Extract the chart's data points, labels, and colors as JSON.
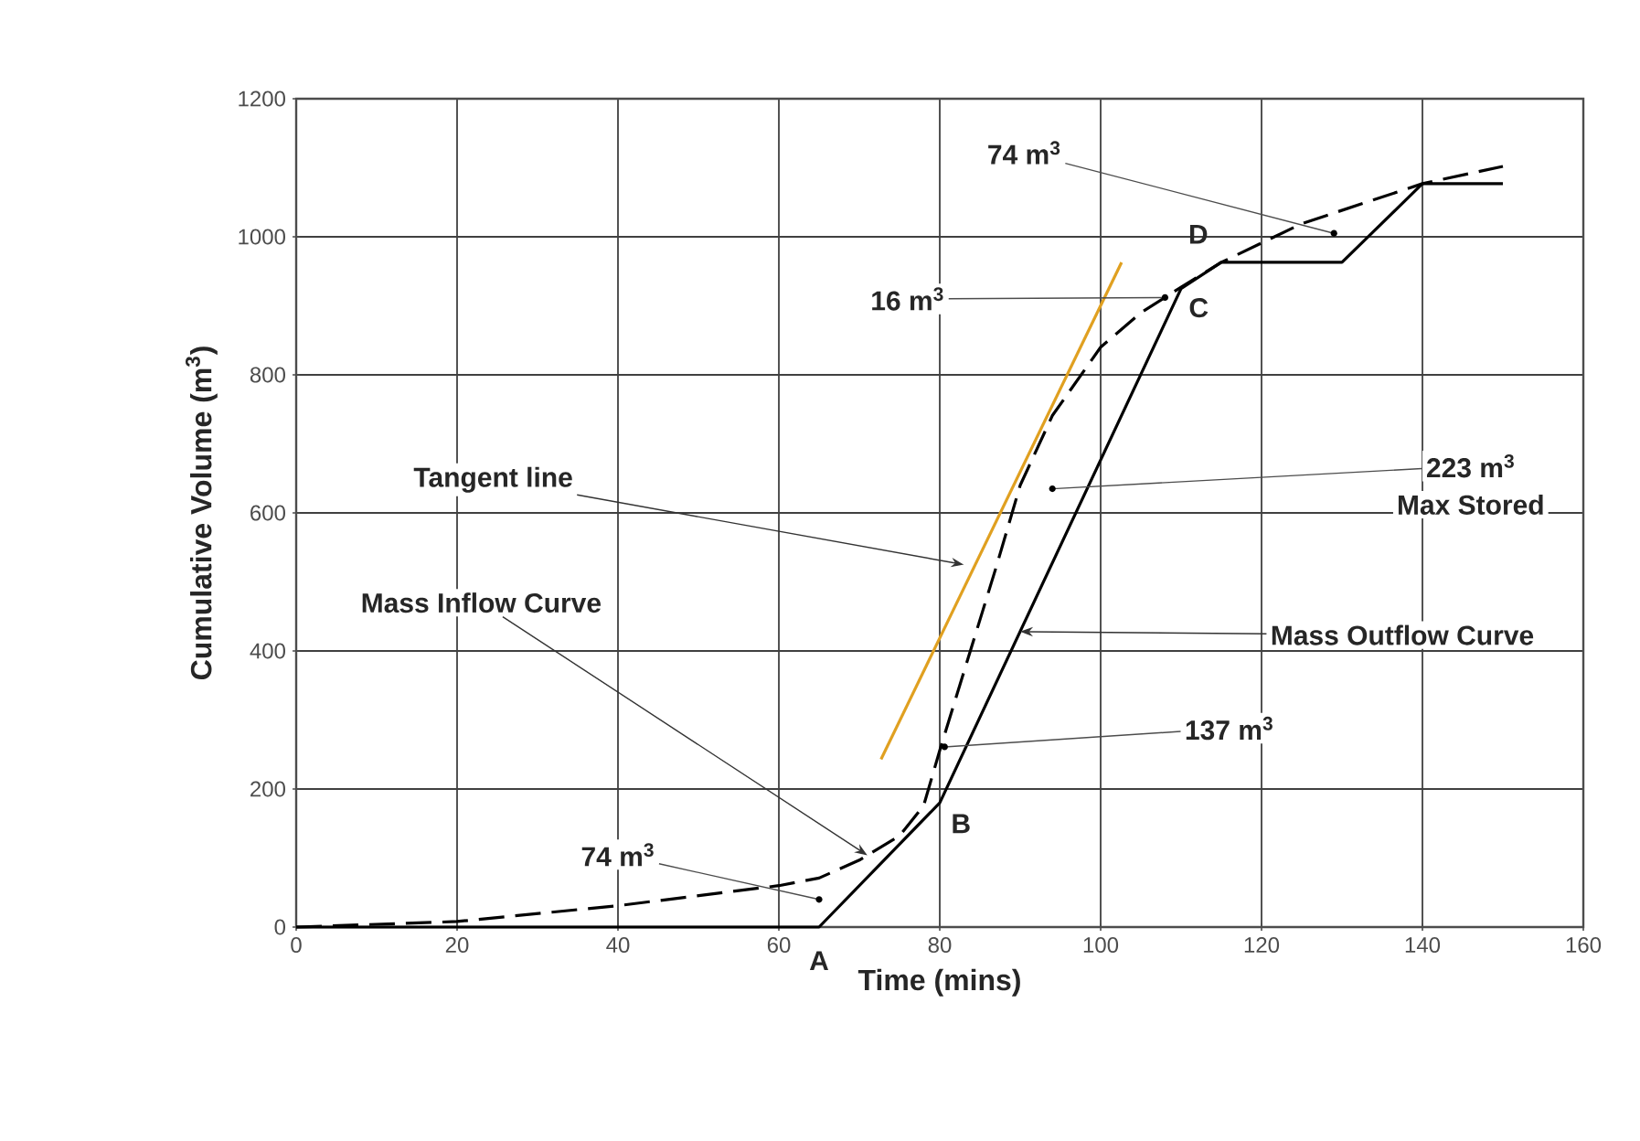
{
  "chart_data": {
    "type": "line",
    "xlabel": "Time (mins)",
    "ylabel": "Cumulative Volume (m$^{3}$)",
    "xlim": [
      0,
      160
    ],
    "xticks": [
      0,
      20,
      40,
      60,
      80,
      100,
      120,
      140,
      160
    ],
    "ylim": [
      0,
      1200
    ],
    "yticks": [
      0,
      200,
      400,
      600,
      800,
      1000,
      1200
    ],
    "grid": true,
    "marker": "none",
    "series": [
      {
        "color": "#000000",
        "line_style": "dashed",
        "x": [
          0,
          20,
          40,
          60,
          65,
          70,
          75,
          78,
          80,
          87,
          90,
          94,
          100,
          105,
          110,
          115,
          125,
          140,
          150
        ],
        "values": [
          0,
          8,
          31,
          60,
          71,
          97,
          132,
          176,
          256,
          521,
          640,
          741,
          840,
          890,
          927,
          963,
          1019,
          1077,
          1102
        ]
      },
      {
        "color": "#000000",
        "line_style": "solid",
        "x": [
          0,
          65,
          80,
          110,
          115,
          130,
          140,
          150
        ],
        "values": [
          0,
          0,
          180,
          925,
          963,
          963,
          1077,
          1077
        ]
      },
      {
        "color": "#e0a020",
        "line_style": "solid",
        "x": [
          72.7,
          102.6
        ],
        "values": [
          243,
          963
        ]
      }
    ],
    "annotations": [
      {
        "text": "Tangent line",
        "x": 83,
        "y": 525
      },
      {
        "text": "Mass Inflow Curve",
        "x": 71,
        "y": 104
      },
      {
        "text": "74 m$^{3}$",
        "x": 65,
        "y": 40
      },
      {
        "text": "A",
        "x": 65,
        "y": 0
      },
      {
        "text": "B",
        "x": 80,
        "y": 180
      },
      {
        "text": "137 m$^{3}$",
        "x": 80.6,
        "y": 261
      },
      {
        "text": "Mass Outflow Curve",
        "x": 90,
        "y": 428
      },
      {
        "text": "223 m$^{3}$",
        "x": 94,
        "y": 635
      },
      "Max Stored",
      {
        "text": "16 m$^{3}$",
        "x": 108,
        "y": 912
      },
      {
        "text": "C",
        "x": 110,
        "y": 925
      },
      {
        "text": "D",
        "x": 115,
        "y": 963
      },
      {
        "text": "74 m$^{3}$",
        "x": 129,
        "y": 1005
      }
    ]
  }
}
